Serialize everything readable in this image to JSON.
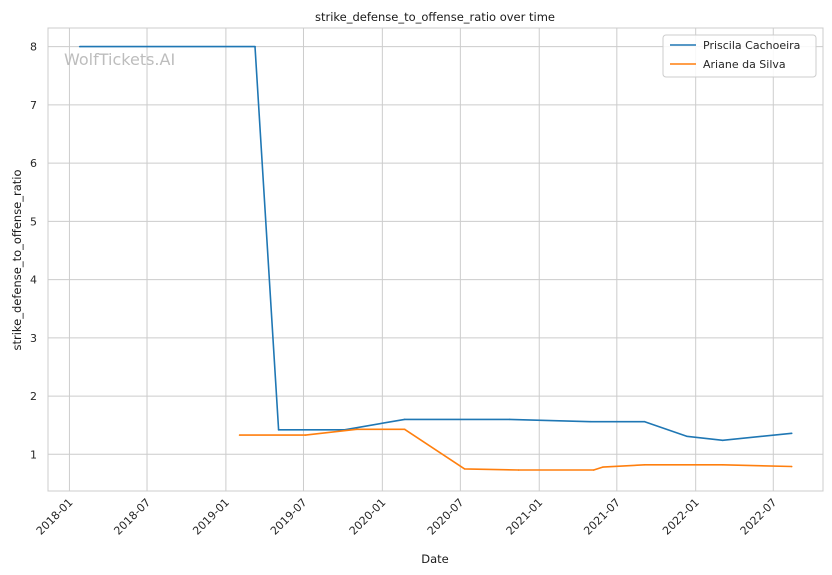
{
  "watermark": "WolfTickets.AI",
  "chart_data": {
    "type": "line",
    "title": "strike_defense_to_offense_ratio over time",
    "xlabel": "Date",
    "ylabel": "strike_defense_to_offense_ratio",
    "x_ticks": [
      "2018-01",
      "2018-07",
      "2019-01",
      "2019-07",
      "2020-01",
      "2020-07",
      "2021-01",
      "2021-07",
      "2022-01",
      "2022-07"
    ],
    "y_ticks": [
      1,
      2,
      3,
      4,
      5,
      6,
      7,
      8
    ],
    "xlim": [
      "2017-11-12",
      "2022-10-25"
    ],
    "ylim": [
      0.37,
      8.32
    ],
    "grid": true,
    "legend_position": "top-right",
    "series": [
      {
        "name": "Priscila Cachoeira",
        "color": "#1f77b4",
        "points": [
          [
            "2018-01-25",
            8.0
          ],
          [
            "2019-03-10",
            8.0
          ],
          [
            "2019-05-04",
            1.42
          ],
          [
            "2019-10-05",
            1.42
          ],
          [
            "2020-02-22",
            1.6
          ],
          [
            "2020-10-24",
            1.6
          ],
          [
            "2021-05-01",
            1.56
          ],
          [
            "2021-09-04",
            1.56
          ],
          [
            "2021-12-11",
            1.31
          ],
          [
            "2022-03-05",
            1.24
          ],
          [
            "2022-08-13",
            1.36
          ]
        ]
      },
      {
        "name": "Ariane da Silva",
        "color": "#ff7f0e",
        "points": [
          [
            "2019-02-02",
            1.33
          ],
          [
            "2019-07-06",
            1.33
          ],
          [
            "2019-11-02",
            1.43
          ],
          [
            "2020-02-22",
            1.43
          ],
          [
            "2020-07-11",
            0.75
          ],
          [
            "2020-11-14",
            0.73
          ],
          [
            "2021-05-08",
            0.73
          ],
          [
            "2021-05-29",
            0.78
          ],
          [
            "2021-09-04",
            0.82
          ],
          [
            "2022-03-05",
            0.82
          ],
          [
            "2022-08-13",
            0.79
          ]
        ]
      }
    ]
  }
}
